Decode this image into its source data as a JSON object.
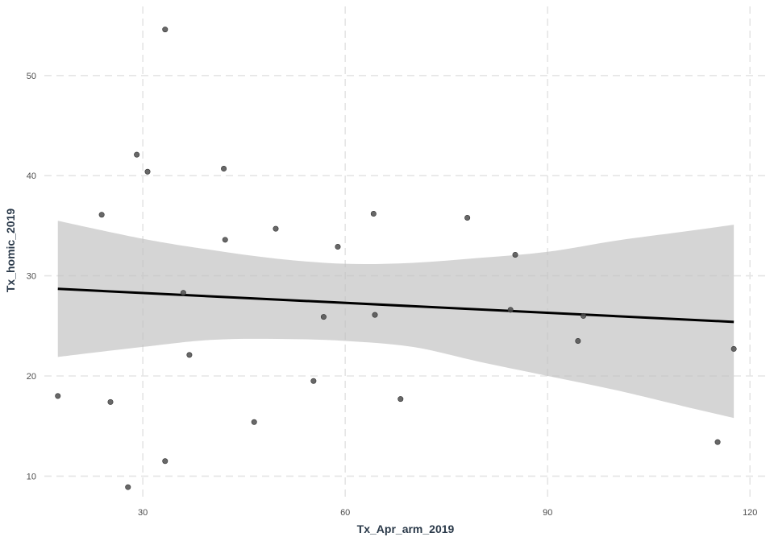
{
  "chart_data": {
    "type": "scatter",
    "title": "",
    "xlabel": "Tx_Apr_arm_2019",
    "ylabel": "Tx_homic_2019",
    "xlim": [
      15.4,
      122.6
    ],
    "ylim": [
      7.7,
      56.9
    ],
    "xticks": [
      30,
      60,
      90,
      120
    ],
    "yticks": [
      10,
      20,
      30,
      40,
      50
    ],
    "grid": true,
    "legend": "none",
    "colors": {
      "points": "#4d4d4d",
      "fit_line": "#000000",
      "ci_band": "#bfbfbf",
      "grid": "#e5e5e5",
      "axis_title": "#2b3a4a",
      "tick_label": "#4d4d4d"
    },
    "points": [
      {
        "x": 17.4,
        "y": 18.0
      },
      {
        "x": 23.9,
        "y": 36.1
      },
      {
        "x": 25.2,
        "y": 17.4
      },
      {
        "x": 27.8,
        "y": 8.9
      },
      {
        "x": 29.1,
        "y": 42.1
      },
      {
        "x": 30.7,
        "y": 40.4
      },
      {
        "x": 33.3,
        "y": 54.6
      },
      {
        "x": 33.3,
        "y": 11.5
      },
      {
        "x": 36.0,
        "y": 28.3
      },
      {
        "x": 36.9,
        "y": 22.1
      },
      {
        "x": 42.0,
        "y": 40.7
      },
      {
        "x": 42.2,
        "y": 33.6
      },
      {
        "x": 46.5,
        "y": 15.4
      },
      {
        "x": 49.7,
        "y": 34.7
      },
      {
        "x": 55.3,
        "y": 19.5
      },
      {
        "x": 56.8,
        "y": 25.9
      },
      {
        "x": 58.9,
        "y": 32.9
      },
      {
        "x": 64.2,
        "y": 36.2
      },
      {
        "x": 64.4,
        "y": 26.1
      },
      {
        "x": 68.2,
        "y": 17.7
      },
      {
        "x": 78.1,
        "y": 35.8
      },
      {
        "x": 84.5,
        "y": 26.6
      },
      {
        "x": 85.2,
        "y": 32.1
      },
      {
        "x": 94.5,
        "y": 23.5
      },
      {
        "x": 95.3,
        "y": 26.0
      },
      {
        "x": 115.2,
        "y": 13.4
      },
      {
        "x": 117.6,
        "y": 22.7
      }
    ],
    "fit": {
      "method": "lm",
      "x": [
        17.4,
        117.6
      ],
      "y": [
        28.7,
        25.4
      ]
    },
    "confidence_band": {
      "x": [
        17.4,
        30,
        40,
        50,
        60,
        70,
        80,
        90,
        100,
        110,
        117.6
      ],
      "upper": [
        35.5,
        33.7,
        32.6,
        31.7,
        31.2,
        31.3,
        31.8,
        32.4,
        33.5,
        34.4,
        35.1
      ],
      "lower": [
        21.9,
        22.9,
        23.6,
        23.7,
        23.5,
        22.9,
        21.4,
        20.0,
        18.6,
        17.0,
        15.8
      ]
    }
  }
}
